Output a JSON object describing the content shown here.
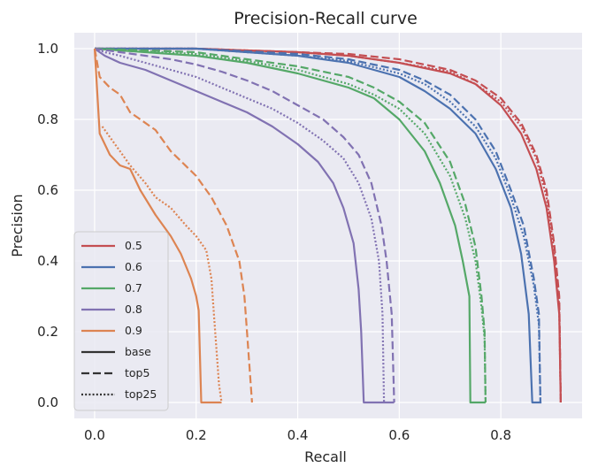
{
  "chart_data": {
    "type": "line",
    "title": "Precision-Recall curve",
    "xlabel": "Recall",
    "ylabel": "Precision",
    "xlim": [
      -0.04,
      0.96
    ],
    "ylim": [
      -0.045,
      1.045
    ],
    "xticks": [
      0.0,
      0.2,
      0.4,
      0.6,
      0.8
    ],
    "xtick_labels": [
      "0.0",
      "0.2",
      "0.4",
      "0.6",
      "0.8"
    ],
    "yticks": [
      0.0,
      0.2,
      0.4,
      0.6,
      0.8,
      1.0
    ],
    "ytick_labels": [
      "0.0",
      "0.2",
      "0.4",
      "0.6",
      "0.8",
      "1.0"
    ],
    "grid": true,
    "background": "#eaeaf2",
    "legend_position": "lower-left",
    "legend": [
      {
        "label": "0.5",
        "color": "#c44e52",
        "dash": "solid"
      },
      {
        "label": "0.6",
        "color": "#4c72b0",
        "dash": "solid"
      },
      {
        "label": "0.7",
        "color": "#55a868",
        "dash": "solid"
      },
      {
        "label": "0.8",
        "color": "#8172b2",
        "dash": "solid"
      },
      {
        "label": "0.9",
        "color": "#dd8452",
        "dash": "solid"
      },
      {
        "label": "base",
        "color": "#333333",
        "dash": "solid"
      },
      {
        "label": "top5",
        "color": "#333333",
        "dash": "dashed"
      },
      {
        "label": "top25",
        "color": "#333333",
        "dash": "dotted"
      }
    ],
    "series": [
      {
        "name": "",
        "threshold": "0.5",
        "variant": "base",
        "color": "#c44e52",
        "dash": "solid",
        "points": [
          [
            0.0,
            1.0
          ],
          [
            0.2,
            1.0
          ],
          [
            0.4,
            0.99
          ],
          [
            0.5,
            0.98
          ],
          [
            0.6,
            0.96
          ],
          [
            0.7,
            0.93
          ],
          [
            0.75,
            0.9
          ],
          [
            0.8,
            0.84
          ],
          [
            0.84,
            0.76
          ],
          [
            0.87,
            0.66
          ],
          [
            0.89,
            0.55
          ],
          [
            0.905,
            0.4
          ],
          [
            0.915,
            0.25
          ],
          [
            0.918,
            0.0
          ]
        ]
      },
      {
        "name": "",
        "threshold": "0.5",
        "variant": "top5",
        "color": "#c44e52",
        "dash": "dashed",
        "points": [
          [
            0.0,
            1.0
          ],
          [
            0.2,
            1.0
          ],
          [
            0.4,
            0.99
          ],
          [
            0.5,
            0.985
          ],
          [
            0.6,
            0.97
          ],
          [
            0.7,
            0.94
          ],
          [
            0.75,
            0.91
          ],
          [
            0.8,
            0.86
          ],
          [
            0.84,
            0.79
          ],
          [
            0.87,
            0.7
          ],
          [
            0.89,
            0.6
          ],
          [
            0.905,
            0.45
          ],
          [
            0.915,
            0.3
          ],
          [
            0.918,
            0.0
          ]
        ]
      },
      {
        "name": "",
        "threshold": "0.5",
        "variant": "top25",
        "color": "#c44e52",
        "dash": "dotted",
        "points": [
          [
            0.0,
            1.0
          ],
          [
            0.2,
            1.0
          ],
          [
            0.4,
            0.99
          ],
          [
            0.5,
            0.98
          ],
          [
            0.6,
            0.96
          ],
          [
            0.7,
            0.935
          ],
          [
            0.75,
            0.9
          ],
          [
            0.8,
            0.85
          ],
          [
            0.84,
            0.78
          ],
          [
            0.87,
            0.69
          ],
          [
            0.89,
            0.58
          ],
          [
            0.905,
            0.43
          ],
          [
            0.915,
            0.27
          ],
          [
            0.918,
            0.0
          ]
        ]
      },
      {
        "name": "",
        "threshold": "0.6",
        "variant": "base",
        "color": "#4c72b0",
        "dash": "solid",
        "points": [
          [
            0.0,
            1.0
          ],
          [
            0.2,
            1.0
          ],
          [
            0.4,
            0.98
          ],
          [
            0.5,
            0.96
          ],
          [
            0.6,
            0.92
          ],
          [
            0.65,
            0.88
          ],
          [
            0.7,
            0.83
          ],
          [
            0.75,
            0.76
          ],
          [
            0.79,
            0.66
          ],
          [
            0.82,
            0.55
          ],
          [
            0.84,
            0.42
          ],
          [
            0.855,
            0.25
          ],
          [
            0.862,
            0.0
          ],
          [
            0.88,
            0.0
          ]
        ]
      },
      {
        "name": "",
        "threshold": "0.6",
        "variant": "top5",
        "color": "#4c72b0",
        "dash": "dashed",
        "points": [
          [
            0.0,
            1.0
          ],
          [
            0.2,
            1.0
          ],
          [
            0.4,
            0.985
          ],
          [
            0.5,
            0.97
          ],
          [
            0.6,
            0.94
          ],
          [
            0.65,
            0.91
          ],
          [
            0.7,
            0.87
          ],
          [
            0.75,
            0.8
          ],
          [
            0.79,
            0.71
          ],
          [
            0.82,
            0.6
          ],
          [
            0.845,
            0.5
          ],
          [
            0.865,
            0.35
          ],
          [
            0.875,
            0.25
          ],
          [
            0.878,
            0.0
          ]
        ]
      },
      {
        "name": "",
        "threshold": "0.6",
        "variant": "top25",
        "color": "#4c72b0",
        "dash": "dotted",
        "points": [
          [
            0.0,
            1.0
          ],
          [
            0.2,
            1.0
          ],
          [
            0.4,
            0.98
          ],
          [
            0.5,
            0.965
          ],
          [
            0.6,
            0.93
          ],
          [
            0.65,
            0.9
          ],
          [
            0.7,
            0.85
          ],
          [
            0.75,
            0.78
          ],
          [
            0.79,
            0.69
          ],
          [
            0.82,
            0.58
          ],
          [
            0.845,
            0.47
          ],
          [
            0.865,
            0.33
          ],
          [
            0.875,
            0.22
          ],
          [
            0.878,
            0.0
          ]
        ]
      },
      {
        "name": "",
        "threshold": "0.7",
        "variant": "base",
        "color": "#55a868",
        "dash": "solid",
        "points": [
          [
            0.0,
            1.0
          ],
          [
            0.2,
            0.98
          ],
          [
            0.3,
            0.96
          ],
          [
            0.4,
            0.93
          ],
          [
            0.5,
            0.89
          ],
          [
            0.55,
            0.86
          ],
          [
            0.6,
            0.8
          ],
          [
            0.65,
            0.71
          ],
          [
            0.68,
            0.62
          ],
          [
            0.71,
            0.5
          ],
          [
            0.725,
            0.4
          ],
          [
            0.738,
            0.3
          ],
          [
            0.74,
            0.0
          ],
          [
            0.77,
            0.0
          ]
        ]
      },
      {
        "name": "",
        "threshold": "0.7",
        "variant": "top5",
        "color": "#55a868",
        "dash": "dashed",
        "points": [
          [
            0.0,
            1.0
          ],
          [
            0.2,
            0.99
          ],
          [
            0.3,
            0.97
          ],
          [
            0.4,
            0.95
          ],
          [
            0.5,
            0.92
          ],
          [
            0.55,
            0.89
          ],
          [
            0.6,
            0.85
          ],
          [
            0.65,
            0.79
          ],
          [
            0.7,
            0.68
          ],
          [
            0.73,
            0.56
          ],
          [
            0.75,
            0.44
          ],
          [
            0.762,
            0.3
          ],
          [
            0.768,
            0.2
          ],
          [
            0.77,
            0.0
          ]
        ]
      },
      {
        "name": "",
        "threshold": "0.7",
        "variant": "top25",
        "color": "#55a868",
        "dash": "dotted",
        "points": [
          [
            0.0,
            1.0
          ],
          [
            0.2,
            0.985
          ],
          [
            0.3,
            0.965
          ],
          [
            0.4,
            0.94
          ],
          [
            0.5,
            0.9
          ],
          [
            0.55,
            0.87
          ],
          [
            0.6,
            0.83
          ],
          [
            0.65,
            0.76
          ],
          [
            0.7,
            0.64
          ],
          [
            0.73,
            0.52
          ],
          [
            0.75,
            0.4
          ],
          [
            0.762,
            0.27
          ],
          [
            0.768,
            0.18
          ],
          [
            0.77,
            0.0
          ]
        ]
      },
      {
        "name": "",
        "threshold": "0.8",
        "variant": "base",
        "color": "#8172b2",
        "dash": "solid",
        "points": [
          [
            0.0,
            1.0
          ],
          [
            0.02,
            0.98
          ],
          [
            0.05,
            0.96
          ],
          [
            0.1,
            0.94
          ],
          [
            0.15,
            0.91
          ],
          [
            0.2,
            0.88
          ],
          [
            0.25,
            0.85
          ],
          [
            0.3,
            0.82
          ],
          [
            0.35,
            0.78
          ],
          [
            0.4,
            0.73
          ],
          [
            0.44,
            0.68
          ],
          [
            0.47,
            0.62
          ],
          [
            0.49,
            0.55
          ],
          [
            0.51,
            0.45
          ],
          [
            0.52,
            0.32
          ],
          [
            0.525,
            0.2
          ],
          [
            0.53,
            0.0
          ],
          [
            0.59,
            0.0
          ]
        ]
      },
      {
        "name": "",
        "threshold": "0.8",
        "variant": "top5",
        "color": "#8172b2",
        "dash": "dashed",
        "points": [
          [
            0.0,
            1.0
          ],
          [
            0.05,
            0.99
          ],
          [
            0.1,
            0.98
          ],
          [
            0.15,
            0.97
          ],
          [
            0.2,
            0.955
          ],
          [
            0.25,
            0.935
          ],
          [
            0.3,
            0.91
          ],
          [
            0.35,
            0.88
          ],
          [
            0.4,
            0.84
          ],
          [
            0.45,
            0.8
          ],
          [
            0.49,
            0.75
          ],
          [
            0.52,
            0.7
          ],
          [
            0.545,
            0.62
          ],
          [
            0.565,
            0.5
          ],
          [
            0.575,
            0.4
          ],
          [
            0.585,
            0.25
          ],
          [
            0.59,
            0.0
          ]
        ]
      },
      {
        "name": "",
        "threshold": "0.8",
        "variant": "top25",
        "color": "#8172b2",
        "dash": "dotted",
        "points": [
          [
            0.0,
            1.0
          ],
          [
            0.02,
            0.99
          ],
          [
            0.05,
            0.98
          ],
          [
            0.1,
            0.96
          ],
          [
            0.15,
            0.94
          ],
          [
            0.2,
            0.92
          ],
          [
            0.25,
            0.89
          ],
          [
            0.3,
            0.86
          ],
          [
            0.35,
            0.83
          ],
          [
            0.4,
            0.79
          ],
          [
            0.45,
            0.74
          ],
          [
            0.49,
            0.69
          ],
          [
            0.52,
            0.62
          ],
          [
            0.545,
            0.52
          ],
          [
            0.56,
            0.4
          ],
          [
            0.567,
            0.25
          ],
          [
            0.57,
            0.0
          ]
        ]
      },
      {
        "name": "",
        "threshold": "0.9",
        "variant": "base",
        "color": "#dd8452",
        "dash": "solid",
        "points": [
          [
            0.0,
            1.0
          ],
          [
            0.01,
            0.76
          ],
          [
            0.03,
            0.7
          ],
          [
            0.05,
            0.67
          ],
          [
            0.07,
            0.66
          ],
          [
            0.09,
            0.6
          ],
          [
            0.12,
            0.53
          ],
          [
            0.15,
            0.47
          ],
          [
            0.17,
            0.42
          ],
          [
            0.19,
            0.35
          ],
          [
            0.2,
            0.3
          ],
          [
            0.205,
            0.26
          ],
          [
            0.21,
            0.0
          ],
          [
            0.25,
            0.0
          ]
        ]
      },
      {
        "name": "",
        "threshold": "0.9",
        "variant": "top5",
        "color": "#dd8452",
        "dash": "dashed",
        "points": [
          [
            0.0,
            1.0
          ],
          [
            0.01,
            0.92
          ],
          [
            0.03,
            0.89
          ],
          [
            0.05,
            0.87
          ],
          [
            0.07,
            0.82
          ],
          [
            0.09,
            0.8
          ],
          [
            0.12,
            0.77
          ],
          [
            0.15,
            0.71
          ],
          [
            0.2,
            0.64
          ],
          [
            0.23,
            0.58
          ],
          [
            0.26,
            0.5
          ],
          [
            0.285,
            0.4
          ],
          [
            0.295,
            0.3
          ],
          [
            0.3,
            0.2
          ],
          [
            0.31,
            0.0
          ]
        ]
      },
      {
        "name": "",
        "threshold": "0.9",
        "variant": "top25",
        "color": "#dd8452",
        "dash": "dotted",
        "points": [
          [
            0.015,
            0.78
          ],
          [
            0.03,
            0.75
          ],
          [
            0.05,
            0.71
          ],
          [
            0.07,
            0.67
          ],
          [
            0.1,
            0.62
          ],
          [
            0.12,
            0.58
          ],
          [
            0.15,
            0.55
          ],
          [
            0.18,
            0.5
          ],
          [
            0.2,
            0.47
          ],
          [
            0.22,
            0.43
          ],
          [
            0.23,
            0.35
          ],
          [
            0.235,
            0.25
          ],
          [
            0.24,
            0.15
          ],
          [
            0.245,
            0.05
          ],
          [
            0.25,
            0.0
          ]
        ]
      }
    ]
  }
}
